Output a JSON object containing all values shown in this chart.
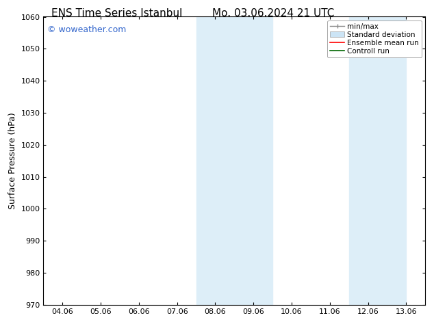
{
  "title": "ENS Time Series Istanbul",
  "title2": "Mo. 03.06.2024 21 UTC",
  "ylabel": "Surface Pressure (hPa)",
  "ylim": [
    970,
    1060
  ],
  "yticks": [
    970,
    980,
    990,
    1000,
    1010,
    1020,
    1030,
    1040,
    1050,
    1060
  ],
  "xtick_labels": [
    "04.06",
    "05.06",
    "06.06",
    "07.06",
    "08.06",
    "09.06",
    "10.06",
    "11.06",
    "12.06",
    "13.06"
  ],
  "shaded_bands": [
    {
      "xmin": 4,
      "xmax": 6,
      "color": "#ddeef8"
    },
    {
      "xmin": 8,
      "xmax": 9.5,
      "color": "#ddeef8"
    }
  ],
  "watermark_text": "© woweather.com",
  "watermark_color": "#3366cc",
  "background_color": "#ffffff",
  "legend_entries": [
    {
      "label": "min/max",
      "color": "#aaaaaa",
      "style": "minmax"
    },
    {
      "label": "Standard deviation",
      "color": "#ccddee",
      "style": "box"
    },
    {
      "label": "Ensemble mean run",
      "color": "#ff0000",
      "style": "line"
    },
    {
      "label": "Controll run",
      "color": "#006600",
      "style": "line"
    }
  ],
  "title_fontsize": 11,
  "tick_fontsize": 8,
  "legend_fontsize": 7.5,
  "ylabel_fontsize": 9,
  "watermark_fontsize": 9
}
